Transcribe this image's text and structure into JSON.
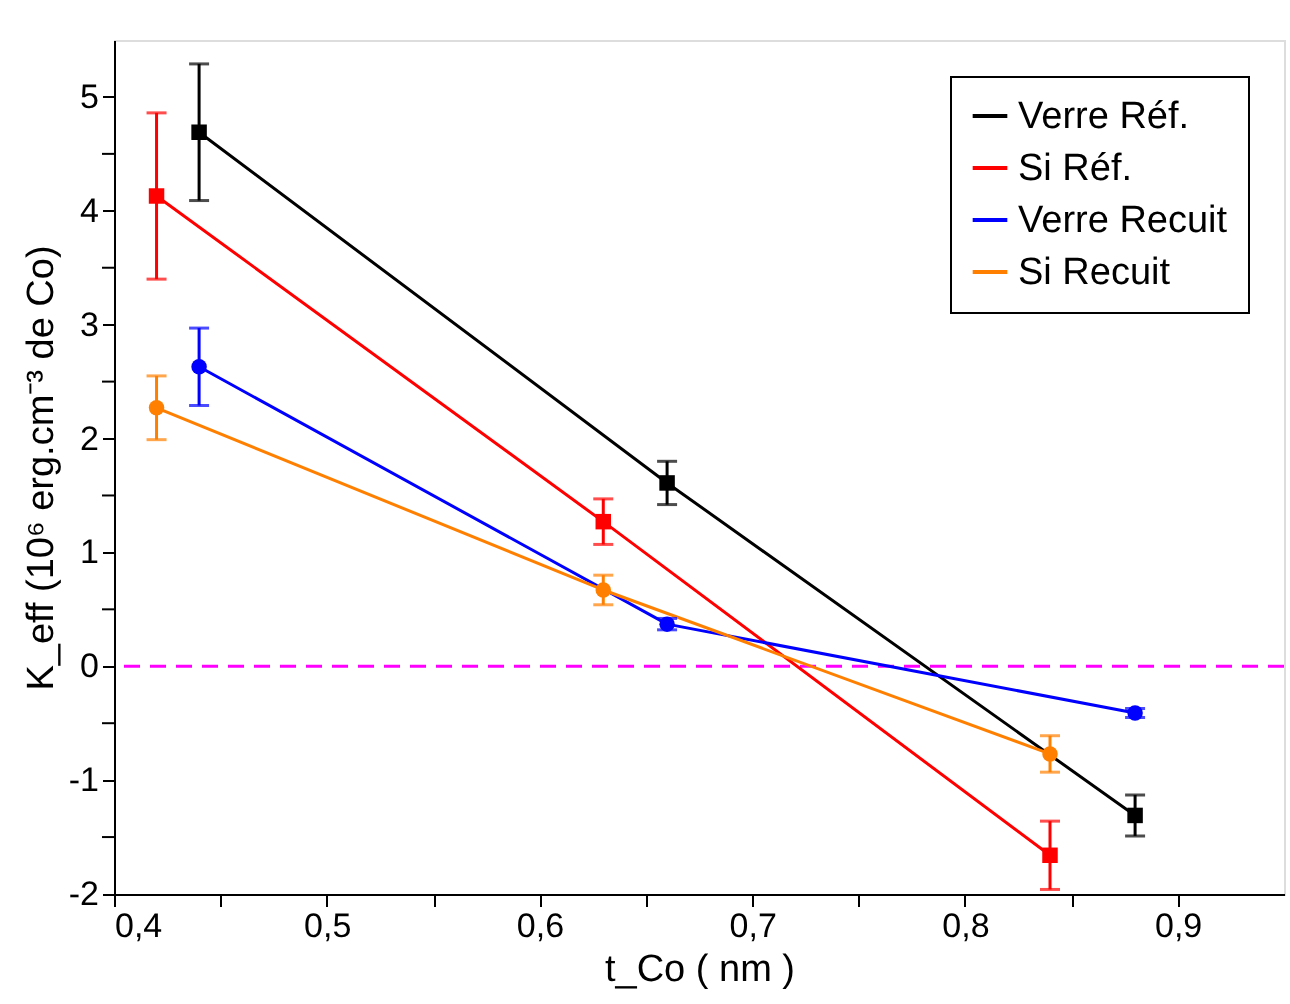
{
  "chart_data": {
    "type": "line",
    "xlabel": "t_Co ( nm )",
    "ylabel": "K_eff (10⁶ erg.cm⁻³ de Co)",
    "xlim": [
      0.4,
      0.95
    ],
    "ylim": [
      -2,
      5.5
    ],
    "xticks": [
      {
        "value": 0.4,
        "label": "0,4"
      },
      {
        "value": 0.45,
        "label": null
      },
      {
        "value": 0.5,
        "label": "0,5"
      },
      {
        "value": 0.55,
        "label": null
      },
      {
        "value": 0.6,
        "label": "0,6"
      },
      {
        "value": 0.65,
        "label": null
      },
      {
        "value": 0.7,
        "label": "0,7"
      },
      {
        "value": 0.75,
        "label": null
      },
      {
        "value": 0.8,
        "label": "0,8"
      },
      {
        "value": 0.85,
        "label": null
      },
      {
        "value": 0.9,
        "label": "0,9"
      }
    ],
    "yticks": [
      -2,
      {
        "value": -1.5,
        "label": null
      },
      -1,
      {
        "value": -0.5,
        "label": null
      },
      0,
      {
        "value": 0.5,
        "label": null
      },
      1,
      {
        "value": 1.5,
        "label": null
      },
      2,
      {
        "value": 2.5,
        "label": null
      },
      3,
      {
        "value": 3.5,
        "label": null
      },
      4,
      {
        "value": 4.5,
        "label": null
      },
      5
    ],
    "grid": false,
    "legend": "top right",
    "line_style": "solid",
    "ref_lines": [
      {
        "axis": "y",
        "value": 0,
        "color": "#ff00ff",
        "line_style": "dashed"
      }
    ],
    "series": [
      {
        "name": "Verre Réf.",
        "color": "#000000",
        "marker": "square",
        "x": [
          0.44,
          0.66,
          0.88
        ],
        "values": [
          4.69,
          1.61,
          -1.31
        ],
        "errors": [
          0.6,
          0.19,
          0.18
        ]
      },
      {
        "name": "Si Réf.",
        "color": "#ff0000",
        "marker": "square",
        "x": [
          0.42,
          0.63,
          0.84
        ],
        "values": [
          4.13,
          1.27,
          -1.66
        ],
        "errors": [
          0.73,
          0.2,
          0.3
        ]
      },
      {
        "name": "Verre Recuit",
        "color": "#0000ff",
        "marker": "circle",
        "x": [
          0.44,
          0.66,
          0.88
        ],
        "values": [
          2.63,
          0.37,
          -0.41
        ],
        "errors": [
          0.34,
          0.05,
          0.04
        ]
      },
      {
        "name": "Si Recuit",
        "color": "#ff8000",
        "marker": "circle",
        "x": [
          0.42,
          0.63,
          0.84
        ],
        "values": [
          2.27,
          0.67,
          -0.77
        ],
        "errors": [
          0.28,
          0.13,
          0.16
        ]
      }
    ]
  }
}
